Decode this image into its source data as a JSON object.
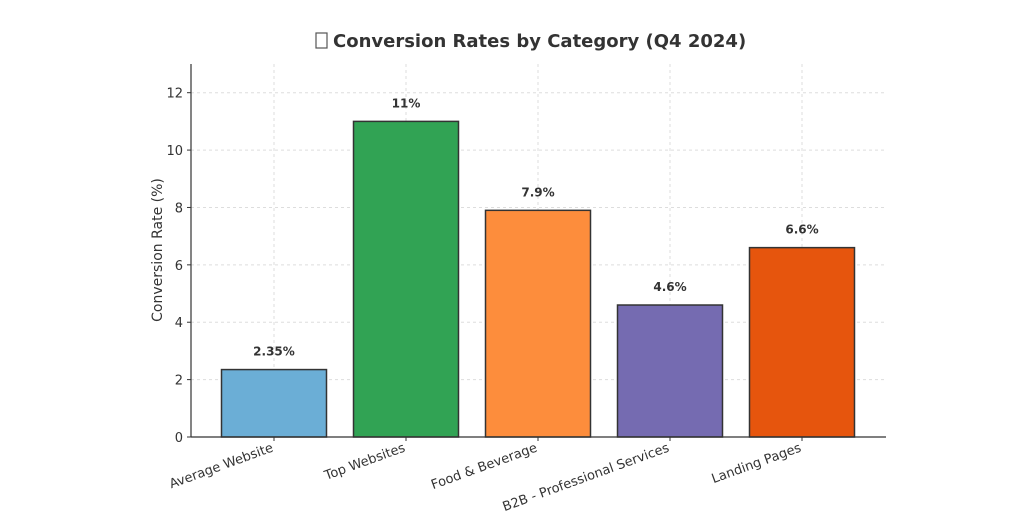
{
  "chart_data": {
    "type": "bar",
    "title": "Conversion Rates by Category (Q4 2024)",
    "title_icon": "missing-glyph-box",
    "xlabel": "",
    "ylabel": "Conversion Rate (%)",
    "ylim": [
      0,
      13
    ],
    "yticks": [
      0,
      2,
      4,
      6,
      8,
      10,
      12
    ],
    "grid": true,
    "categories": [
      "Average Website",
      "Top Websites",
      "Food & Beverage",
      "B2B - Professional Services",
      "Landing Pages"
    ],
    "values": [
      2.35,
      11,
      7.9,
      4.6,
      6.6
    ],
    "data_labels": [
      "2.35%",
      "11%",
      "7.9%",
      "4.6%",
      "6.6%"
    ],
    "colors": [
      "#6baed6",
      "#31a354",
      "#fd8d3c",
      "#756bb1",
      "#e6550d"
    ]
  }
}
